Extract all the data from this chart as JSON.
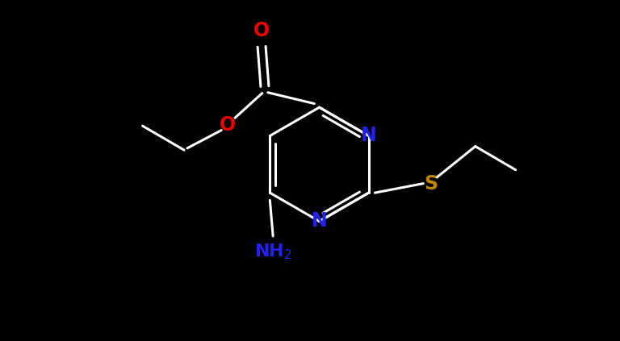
{
  "background_color": "#000000",
  "bond_color": "#ffffff",
  "N_color": "#2222ee",
  "O_color": "#ee0000",
  "S_color": "#bb8800",
  "NH2_color": "#2222ee",
  "bond_width": 2.2,
  "font_size_atom": 17,
  "fig_width": 7.68,
  "fig_height": 4.23,
  "dpi": 100,
  "xlim": [
    0,
    10
  ],
  "ylim": [
    0,
    5.5
  ]
}
